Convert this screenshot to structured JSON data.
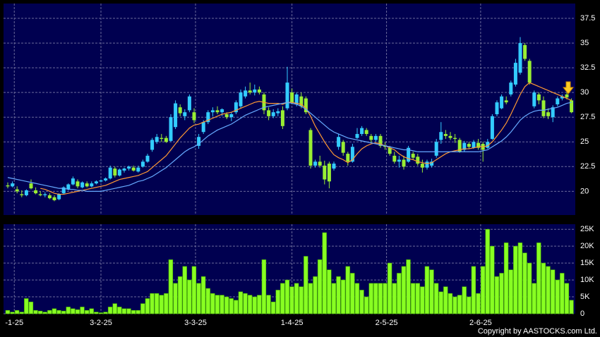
{
  "chart_data": [
    {
      "type": "candlestick",
      "ylim": [
        17.6,
        39
      ],
      "yticks": [
        20,
        22.5,
        25,
        27.5,
        30,
        32.5,
        35,
        37.5
      ],
      "grid": true,
      "up_color": "#33ccff",
      "down_color": "#99ee33",
      "ohlc": [
        [
          20.6,
          20.9,
          20.3,
          20.5
        ],
        [
          20.5,
          21.0,
          20.4,
          20.8
        ],
        [
          20.2,
          20.5,
          19.8,
          20.0
        ],
        [
          19.7,
          20.1,
          19.4,
          19.6
        ],
        [
          19.6,
          20.2,
          19.5,
          20.1
        ],
        [
          20.8,
          21.2,
          20.2,
          20.3
        ],
        [
          20.1,
          20.4,
          19.7,
          19.8
        ],
        [
          19.7,
          20.0,
          19.5,
          19.6
        ],
        [
          19.6,
          19.9,
          19.4,
          19.7
        ],
        [
          19.6,
          19.8,
          19.2,
          19.3
        ],
        [
          19.4,
          19.6,
          19.0,
          19.1
        ],
        [
          19.2,
          19.8,
          19.1,
          19.7
        ],
        [
          19.8,
          20.5,
          19.7,
          20.4
        ],
        [
          20.2,
          20.8,
          20.1,
          20.7
        ],
        [
          20.7,
          21.5,
          20.6,
          21.3
        ],
        [
          21.0,
          21.2,
          20.3,
          20.5
        ],
        [
          20.4,
          21.0,
          20.3,
          20.9
        ],
        [
          20.8,
          21.0,
          20.4,
          20.5
        ],
        [
          20.5,
          21.0,
          20.4,
          20.8
        ],
        [
          20.8,
          21.1,
          20.7,
          21.0
        ],
        [
          21.0,
          21.2,
          20.9,
          21.1
        ],
        [
          21.1,
          21.4,
          21.0,
          21.3
        ],
        [
          21.3,
          22.6,
          21.2,
          22.4
        ],
        [
          22.3,
          22.5,
          21.4,
          21.6
        ],
        [
          21.6,
          22.3,
          21.5,
          22.2
        ],
        [
          22.1,
          22.4,
          21.9,
          22.3
        ],
        [
          22.3,
          22.6,
          22.1,
          22.5
        ],
        [
          22.4,
          22.6,
          22.0,
          22.1
        ],
        [
          22.0,
          22.6,
          21.9,
          22.4
        ],
        [
          22.5,
          23.2,
          22.4,
          23.0
        ],
        [
          23.0,
          23.8,
          22.9,
          23.6
        ],
        [
          24.2,
          25.4,
          24.0,
          25.2
        ],
        [
          25.0,
          25.8,
          24.8,
          25.5
        ],
        [
          25.4,
          25.8,
          25.0,
          25.3
        ],
        [
          25.4,
          25.6,
          24.9,
          25.0
        ],
        [
          25.1,
          27.8,
          25.0,
          27.5
        ],
        [
          26.5,
          29.2,
          26.3,
          28.9
        ],
        [
          28.5,
          28.8,
          27.6,
          27.9
        ],
        [
          27.6,
          28.3,
          27.2,
          28.0
        ],
        [
          28.2,
          29.8,
          28.0,
          29.6
        ],
        [
          28.0,
          28.4,
          26.9,
          27.2
        ],
        [
          24.6,
          25.8,
          24.3,
          25.5
        ],
        [
          26.0,
          27.2,
          25.8,
          27.0
        ],
        [
          27.0,
          28.2,
          26.8,
          28.0
        ],
        [
          28.0,
          28.5,
          27.6,
          28.2
        ],
        [
          28.2,
          28.6,
          27.8,
          28.0
        ],
        [
          28.0,
          28.4,
          27.6,
          28.3
        ],
        [
          27.8,
          28.0,
          27.3,
          27.5
        ],
        [
          27.5,
          28.0,
          27.1,
          27.8
        ],
        [
          28.0,
          29.2,
          27.8,
          29.0
        ],
        [
          28.6,
          30.3,
          28.4,
          30.0
        ],
        [
          29.6,
          30.6,
          29.4,
          30.2
        ],
        [
          30.2,
          31.0,
          29.8,
          30.0
        ],
        [
          30.0,
          30.8,
          29.7,
          30.3
        ],
        [
          30.3,
          30.6,
          29.8,
          30.0
        ],
        [
          29.8,
          30.0,
          27.8,
          28.2
        ],
        [
          28.2,
          28.5,
          27.2,
          27.6
        ],
        [
          27.6,
          28.3,
          27.4,
          28.0
        ],
        [
          27.9,
          28.4,
          27.6,
          28.1
        ],
        [
          28.2,
          28.6,
          26.3,
          26.6
        ],
        [
          28.4,
          32.6,
          28.2,
          31.0
        ],
        [
          30.0,
          30.4,
          28.8,
          29.0
        ],
        [
          28.8,
          30.0,
          28.6,
          29.8
        ],
        [
          29.6,
          30.0,
          28.4,
          28.6
        ],
        [
          29.4,
          29.6,
          27.8,
          28.0
        ],
        [
          26.2,
          26.4,
          22.3,
          22.6
        ],
        [
          22.6,
          23.2,
          22.4,
          23.0
        ],
        [
          23.0,
          23.6,
          22.4,
          22.6
        ],
        [
          22.6,
          23.1,
          20.7,
          21.2
        ],
        [
          22.8,
          23.0,
          20.3,
          21.0
        ],
        [
          22.3,
          23.0,
          22.1,
          22.8
        ],
        [
          24.5,
          25.8,
          24.2,
          25.5
        ],
        [
          25.0,
          25.2,
          23.6,
          23.9
        ],
        [
          23.8,
          24.0,
          22.6,
          23.0
        ],
        [
          23.0,
          24.8,
          22.9,
          24.5
        ],
        [
          25.4,
          26.4,
          25.3,
          25.8
        ],
        [
          25.8,
          26.6,
          25.6,
          26.4
        ],
        [
          26.2,
          26.4,
          25.6,
          25.8
        ],
        [
          25.6,
          25.8,
          24.9,
          25.2
        ],
        [
          25.2,
          25.8,
          25.0,
          25.6
        ],
        [
          25.6,
          25.8,
          24.4,
          24.6
        ],
        [
          24.6,
          25.0,
          24.2,
          24.5
        ],
        [
          24.4,
          24.6,
          23.6,
          23.8
        ],
        [
          23.6,
          24.0,
          22.8,
          23.0
        ],
        [
          23.0,
          23.6,
          22.4,
          23.2
        ],
        [
          23.2,
          23.6,
          22.2,
          22.5
        ],
        [
          23.0,
          24.6,
          22.9,
          24.4
        ],
        [
          23.8,
          24.0,
          23.2,
          23.4
        ],
        [
          23.5,
          23.8,
          22.6,
          22.8
        ],
        [
          22.8,
          23.2,
          21.9,
          22.4
        ],
        [
          22.4,
          23.2,
          22.2,
          23.0
        ],
        [
          22.6,
          23.3,
          22.4,
          23.0
        ],
        [
          23.6,
          25.3,
          23.4,
          25.0
        ],
        [
          25.2,
          27.0,
          24.8,
          26.0
        ],
        [
          25.8,
          26.2,
          25.3,
          25.6
        ],
        [
          25.6,
          26.0,
          25.2,
          25.4
        ],
        [
          25.4,
          25.8,
          24.9,
          25.3
        ],
        [
          25.2,
          25.4,
          23.9,
          24.0
        ],
        [
          24.2,
          25.1,
          24.0,
          24.9
        ],
        [
          24.8,
          25.0,
          24.3,
          24.5
        ],
        [
          24.4,
          25.2,
          24.3,
          25.0
        ],
        [
          24.9,
          25.3,
          24.2,
          24.4
        ],
        [
          24.8,
          25.0,
          23.0,
          24.2
        ],
        [
          24.4,
          25.3,
          24.3,
          25.0
        ],
        [
          25.3,
          27.8,
          25.2,
          27.6
        ],
        [
          27.8,
          29.2,
          27.6,
          29.0
        ],
        [
          28.4,
          29.8,
          28.3,
          29.6
        ],
        [
          29.2,
          29.6,
          28.8,
          29.0
        ],
        [
          29.8,
          31.2,
          29.6,
          31.0
        ],
        [
          30.8,
          33.4,
          30.6,
          33.0
        ],
        [
          32.0,
          35.6,
          31.8,
          35.0
        ],
        [
          34.8,
          35.0,
          33.2,
          33.4
        ],
        [
          33.2,
          33.4,
          30.8,
          31.0
        ],
        [
          28.6,
          30.2,
          28.4,
          30.0
        ],
        [
          29.8,
          30.0,
          28.8,
          29.2
        ],
        [
          29.2,
          29.6,
          27.4,
          27.6
        ],
        [
          28.0,
          28.4,
          27.3,
          27.6
        ],
        [
          27.5,
          28.7,
          27.0,
          28.5
        ],
        [
          28.8,
          29.6,
          28.6,
          29.4
        ],
        [
          29.4,
          29.8,
          29.2,
          29.6
        ],
        [
          29.8,
          30.0,
          29.3,
          29.5
        ],
        [
          29.2,
          29.4,
          27.9,
          28.0
        ]
      ],
      "series": [
        {
          "color": "#ff9933",
          "values": [
            null,
            null,
            null,
            null,
            null,
            null,
            null,
            20.3,
            20.2,
            20.0,
            19.8,
            19.7,
            19.7,
            19.8,
            19.9,
            20.0,
            20.1,
            20.2,
            20.3,
            20.4,
            20.5,
            20.6,
            20.8,
            21.0,
            21.2,
            21.3,
            21.4,
            21.5,
            21.6,
            21.8,
            22.0,
            22.4,
            22.8,
            23.2,
            23.6,
            24.2,
            24.8,
            25.4,
            25.9,
            26.4,
            26.7,
            26.8,
            27.0,
            27.2,
            27.4,
            27.6,
            27.8,
            27.9,
            28.0,
            28.2,
            28.4,
            28.6,
            28.8,
            29.0,
            29.1,
            29.0,
            28.9,
            28.9,
            28.9,
            28.8,
            29.0,
            29.0,
            28.9,
            28.8,
            28.4,
            27.6,
            26.6,
            25.8,
            25.0,
            24.3,
            23.7,
            23.4,
            23.2,
            22.9,
            23.2,
            23.8,
            24.3,
            24.6,
            24.8,
            24.9,
            24.8,
            24.6,
            24.4,
            24.2,
            23.8,
            23.5,
            23.3,
            23.2,
            23.0,
            22.9,
            22.8,
            22.9,
            23.2,
            23.5,
            23.8,
            24.0,
            24.1,
            24.2,
            24.3,
            24.3,
            24.4,
            24.5,
            24.5,
            24.6,
            25.0,
            25.6,
            26.2,
            26.9,
            27.8,
            28.8,
            29.8,
            30.6,
            31.0,
            30.8,
            30.6,
            30.4,
            30.2,
            30.0,
            29.8,
            29.6,
            29.4,
            29.2
          ]
        },
        {
          "color": "#66aaff",
          "values": [
            21.4,
            21.3,
            21.2,
            21.1,
            21.0,
            20.9,
            20.8,
            20.7,
            20.6,
            20.5,
            20.4,
            20.3,
            20.3,
            20.2,
            20.2,
            20.1,
            20.1,
            20.0,
            20.0,
            20.0,
            20.0,
            20.1,
            20.2,
            20.3,
            20.4,
            20.5,
            20.6,
            20.8,
            21.0,
            21.1,
            21.3,
            21.5,
            21.8,
            22.1,
            22.4,
            22.8,
            23.2,
            23.6,
            24.0,
            24.3,
            24.5,
            24.8,
            25.2,
            25.6,
            25.9,
            26.2,
            26.4,
            26.6,
            26.8,
            27.1,
            27.4,
            27.7,
            27.9,
            28.1,
            28.3,
            28.5,
            28.6,
            28.7,
            28.8,
            28.9,
            29.0,
            28.9,
            28.8,
            28.6,
            28.3,
            27.9,
            27.5,
            27.1,
            26.7,
            26.3,
            26.0,
            25.8,
            25.6,
            25.4,
            25.3,
            25.2,
            25.1,
            25.0,
            24.9,
            24.8,
            24.7,
            24.6,
            24.5,
            24.4,
            24.3,
            24.2,
            24.2,
            24.1,
            24.0,
            24.0,
            24.0,
            24.0,
            24.0,
            24.0,
            24.0,
            24.0,
            24.0,
            24.0,
            24.0,
            24.0,
            24.0,
            24.0,
            24.1,
            24.2,
            24.5,
            24.8,
            25.1,
            25.5,
            26.0,
            26.6,
            27.2,
            27.6,
            27.9,
            28.1,
            28.2,
            28.2,
            28.3,
            28.4,
            28.5,
            28.7,
            28.9,
            29.0
          ]
        }
      ]
    },
    {
      "type": "bar",
      "color": "#88ff22",
      "ylim": [
        0,
        26500
      ],
      "grid": true,
      "yticks": [
        0,
        {
          "value": 5000,
          "label": "5K"
        },
        {
          "value": 10000,
          "label": "10K"
        },
        {
          "value": 15000,
          "label": "15K"
        },
        {
          "value": 20000,
          "label": "20K"
        },
        {
          "value": 25000,
          "label": "25K"
        }
      ],
      "xticks": [
        {
          "value": 1.4,
          "label": "-1-25"
        },
        {
          "value": 20,
          "label": "3-2-25"
        },
        {
          "value": 40.3,
          "label": "3-3-25"
        },
        {
          "value": 61,
          "label": "1-4-25"
        },
        {
          "value": 81.3,
          "label": "2-5-25"
        },
        {
          "value": 101.5,
          "label": "2-6-25"
        }
      ],
      "values": [
        1000,
        500,
        1000,
        500,
        4500,
        3500,
        1000,
        800,
        500,
        1000,
        1500,
        1000,
        800,
        2000,
        1500,
        1200,
        2000,
        1000,
        1500,
        500,
        300,
        500,
        2000,
        3000,
        2000,
        1500,
        1500,
        1000,
        1000,
        3000,
        4500,
        6000,
        6000,
        5500,
        6000,
        16000,
        9000,
        11000,
        14000,
        10000,
        14000,
        9000,
        11000,
        7500,
        6000,
        5500,
        5500,
        5000,
        4500,
        4000,
        6500,
        6000,
        5500,
        5000,
        5500,
        16000,
        5500,
        3500,
        7000,
        9000,
        10000,
        8000,
        9000,
        8000,
        17000,
        9000,
        11000,
        16000,
        24000,
        13000,
        9000,
        11000,
        10000,
        14000,
        12000,
        9000,
        7000,
        5000,
        9000,
        9000,
        9000,
        9000,
        15000,
        9000,
        12000,
        14000,
        16000,
        9000,
        9000,
        8000,
        14000,
        13000,
        9000,
        6500,
        8000,
        6000,
        5000,
        5500,
        8000,
        5000,
        14000,
        6000,
        14000,
        25000,
        20000,
        11000,
        12000,
        21000,
        13000,
        20000,
        21000,
        18000,
        15000,
        9000,
        21000,
        15000,
        14000,
        13000,
        10000,
        12000,
        9000,
        4000
      ]
    }
  ],
  "copyright": "Copyright by AASTOCKS.com Ltd."
}
